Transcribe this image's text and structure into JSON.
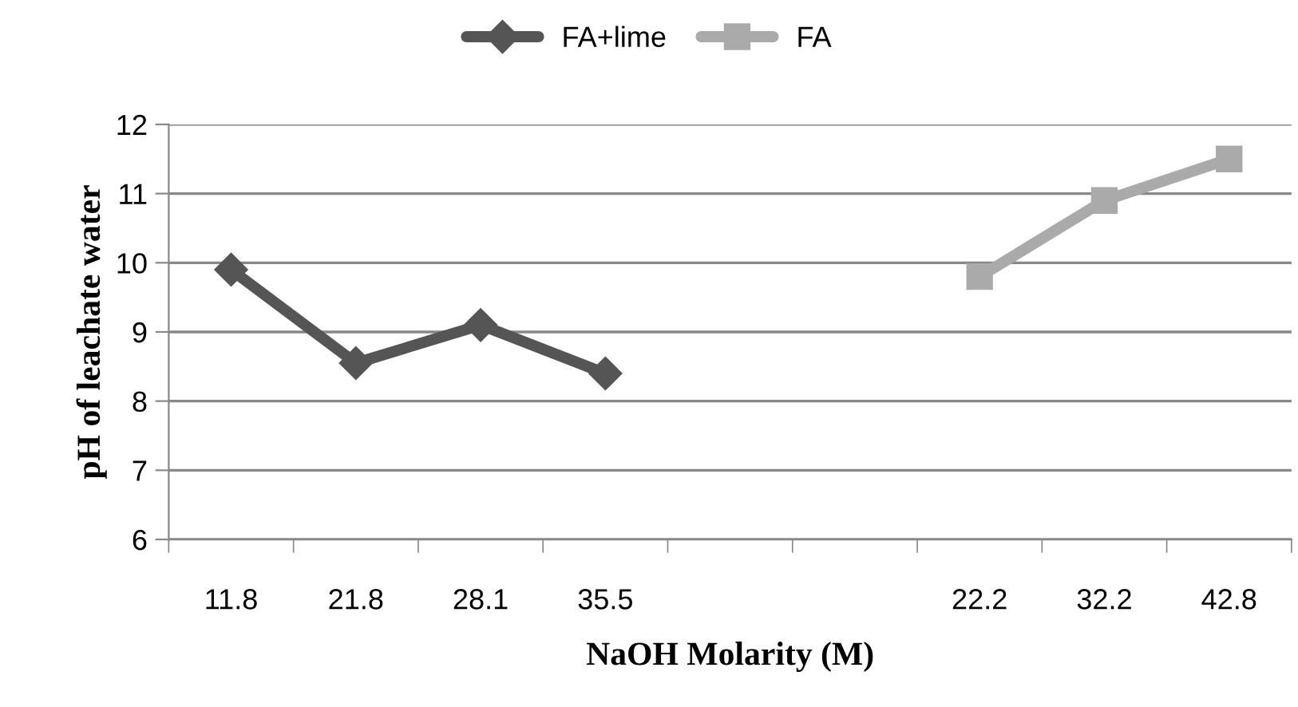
{
  "chart_data": {
    "type": "line",
    "xlabel": "NaOH Molarity (M)",
    "ylabel": "pH of leachate water",
    "categories": [
      "11.8",
      "21.8",
      "28.1",
      "35.5",
      null,
      null,
      "22.2",
      "32.2",
      "42.8"
    ],
    "series": [
      {
        "name": "FA+lime",
        "color": "#555555",
        "marker": "diamond",
        "values": [
          9.9,
          8.55,
          9.1,
          8.4,
          null,
          null,
          null,
          null,
          null
        ]
      },
      {
        "name": "FA",
        "color": "#aaaaaa",
        "marker": "square",
        "values": [
          null,
          null,
          null,
          null,
          null,
          null,
          9.8,
          10.9,
          11.5
        ]
      }
    ],
    "ylim": [
      6,
      12
    ],
    "yticks": [
      6,
      7,
      8,
      9,
      10,
      11,
      12
    ],
    "grid": "y",
    "legend": "top"
  }
}
